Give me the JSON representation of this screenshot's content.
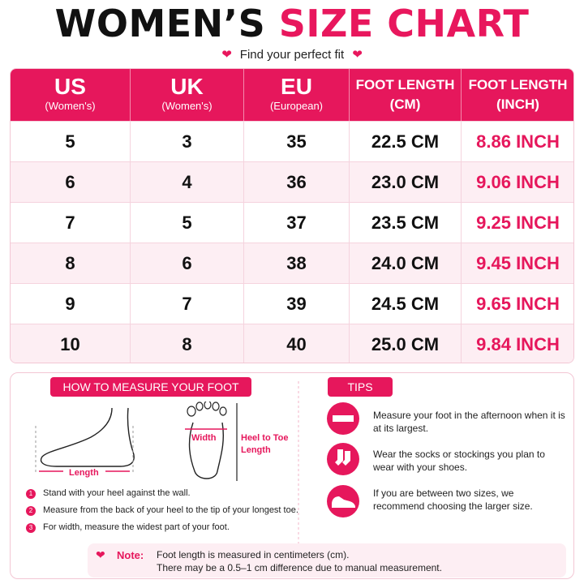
{
  "header": {
    "title_part1": "WOMEN’S",
    "title_part2": "SIZE CHART",
    "subtitle": "Find your perfect fit"
  },
  "table": {
    "headers": [
      {
        "main": "US",
        "sub": "(Women's)"
      },
      {
        "main": "UK",
        "sub": "(Women's)"
      },
      {
        "main": "EU",
        "sub": "(European)"
      },
      {
        "main": "FOOT LENGTH",
        "sub": "(CM)"
      },
      {
        "main": "FOOT LENGTH",
        "sub": "(INCH)"
      }
    ],
    "rows": [
      [
        "5",
        "3",
        "35",
        "22.5 CM",
        "8.86 INCH"
      ],
      [
        "6",
        "4",
        "36",
        "23.0 CM",
        "9.06 INCH"
      ],
      [
        "7",
        "5",
        "37",
        "23.5 CM",
        "9.25 INCH"
      ],
      [
        "8",
        "6",
        "38",
        "24.0 CM",
        "9.45 INCH"
      ],
      [
        "9",
        "7",
        "39",
        "24.5 CM",
        "9.65 INCH"
      ],
      [
        "10",
        "8",
        "40",
        "25.0 CM",
        "9.84 INCH"
      ]
    ]
  },
  "measure": {
    "title": "HOW TO MEASURE YOUR FOOT",
    "length_label": "Length",
    "width_label": "Width",
    "heel_to_toe_label": "Heel to Toe Length",
    "steps": [
      {
        "number": "1",
        "text": "Stand with your heel against the wall."
      },
      {
        "number": "2",
        "text": "Measure from the back of your heel to the tip of your longest toe."
      },
      {
        "number": "3",
        "text": "For width, measure the widest part of your foot."
      }
    ]
  },
  "tips": {
    "title": "TIPS",
    "items": [
      "Measure your foot in the afternoon when it is at its largest.",
      "Wear the socks or stockings you plan to wear with your shoes.",
      "If you are between two sizes, we recommend choosing the larger size."
    ]
  },
  "note": {
    "label": "Note:",
    "lines": [
      "Foot length is measured in centimeters (cm).",
      "There may be a 0.5–1 cm difference due to manual measurement."
    ]
  }
}
